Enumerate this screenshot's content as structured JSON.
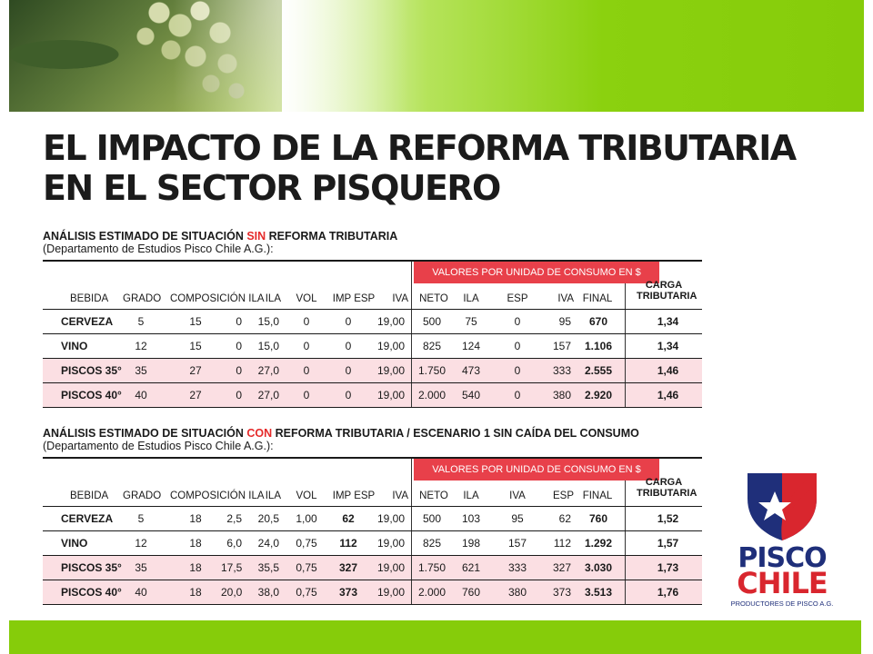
{
  "title": {
    "line1": "EL IMPACTO DE LA REFORMA TRIBUTARIA",
    "line2": "EN EL SECTOR PISQUERO"
  },
  "colors": {
    "green": "#86cc0a",
    "red": "#e8404a",
    "pink": "#fbdfe3",
    "navy": "#1f2f7a"
  },
  "table1": {
    "caption_before": "ANÁLISIS ESTIMADO DE SITUACIÓN ",
    "caption_highlight": "SIN",
    "caption_after": " REFORMA TRIBUTARIA",
    "source": "(Departamento de Estudios Pisco Chile A.G.):",
    "group_header": "VALORES POR UNIDAD DE CONSUMO EN $",
    "headers": [
      "BEBIDA",
      "GRADO",
      "COMPOSICIÓN ILA",
      "ILA",
      "VOL",
      "IMP ESP",
      "IVA",
      "NETO",
      "ILA",
      "ESP",
      "IVA",
      "FINAL"
    ],
    "carga_line1": "CARGA",
    "carga_line2": "TRIBUTARIA",
    "rows": [
      {
        "cells": [
          "CERVEZA",
          "5",
          "15",
          "0",
          "15,0",
          "0",
          "0",
          "19,00",
          "500",
          "75",
          "0",
          "95",
          "670",
          "1,34"
        ],
        "pink": false
      },
      {
        "cells": [
          "VINO",
          "12",
          "15",
          "0",
          "15,0",
          "0",
          "0",
          "19,00",
          "825",
          "124",
          "0",
          "157",
          "1.106",
          "1,34"
        ],
        "pink": false
      },
      {
        "cells": [
          "PISCOS 35°",
          "35",
          "27",
          "0",
          "27,0",
          "0",
          "0",
          "19,00",
          "1.750",
          "473",
          "0",
          "333",
          "2.555",
          "1,46"
        ],
        "pink": true
      },
      {
        "cells": [
          "PISCOS 40°",
          "40",
          "27",
          "0",
          "27,0",
          "0",
          "0",
          "19,00",
          "2.000",
          "540",
          "0",
          "380",
          "2.920",
          "1,46"
        ],
        "pink": true
      }
    ]
  },
  "table2": {
    "caption_before": "ANÁLISIS ESTIMADO DE SITUACIÓN ",
    "caption_highlight": "CON",
    "caption_after": " REFORMA TRIBUTARIA / ESCENARIO 1 SIN CAÍDA DEL CONSUMO",
    "source": "(Departamento de Estudios Pisco Chile A.G.):",
    "group_header": "VALORES POR UNIDAD DE CONSUMO EN $",
    "headers": [
      "BEBIDA",
      "GRADO",
      "COMPOSICIÓN ILA",
      "ILA",
      "VOL",
      "IMP ESP",
      "IVA",
      "NETO",
      "ILA",
      "IVA",
      "ESP",
      "FINAL"
    ],
    "carga_line1": "CARGA",
    "carga_line2": "TRIBUTARIA",
    "rows": [
      {
        "cells": [
          "CERVEZA",
          "5",
          "18",
          "2,5",
          "20,5",
          "1,00",
          "62",
          "19,00",
          "500",
          "103",
          "95",
          "62",
          "760",
          "1,52"
        ],
        "pink": false
      },
      {
        "cells": [
          "VINO",
          "12",
          "18",
          "6,0",
          "24,0",
          "0,75",
          "112",
          "19,00",
          "825",
          "198",
          "157",
          "112",
          "1.292",
          "1,57"
        ],
        "pink": false
      },
      {
        "cells": [
          "PISCOS 35°",
          "35",
          "18",
          "17,5",
          "35,5",
          "0,75",
          "327",
          "19,00",
          "1.750",
          "621",
          "333",
          "327",
          "3.030",
          "1,73"
        ],
        "pink": true
      },
      {
        "cells": [
          "PISCOS 40°",
          "40",
          "18",
          "20,0",
          "38,0",
          "0,75",
          "373",
          "19,00",
          "2.000",
          "760",
          "380",
          "373",
          "3.513",
          "1,76"
        ],
        "pink": true
      }
    ]
  },
  "logo": {
    "line1": "PISCO",
    "line2": "CHILE",
    "sub": "PRODUCTORES DE PISCO A.G."
  }
}
